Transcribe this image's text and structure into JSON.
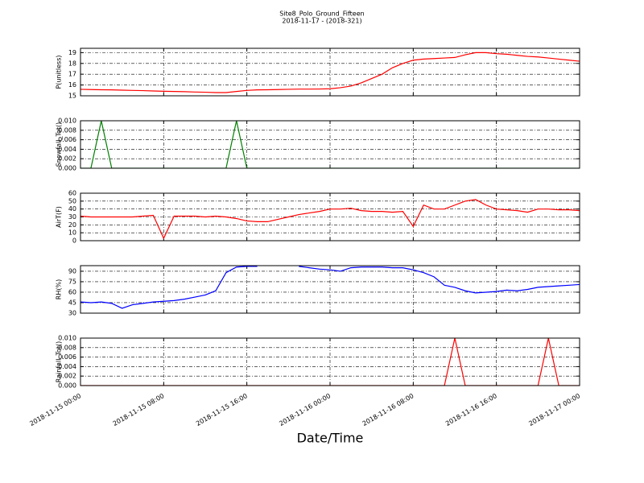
{
  "chart_data": [
    {
      "type": "line",
      "title": "Site8_Polo_Ground_Fifteen",
      "subtitle": "2018-11-17 - (2018-321)",
      "ylabel": "P(unitless)",
      "grid": true,
      "x": [
        "2018-11-15 00:00",
        "2018-11-15 01:00",
        "2018-11-15 02:00",
        "2018-11-15 03:00",
        "2018-11-15 04:00",
        "2018-11-15 05:00",
        "2018-11-15 06:00",
        "2018-11-15 07:00",
        "2018-11-15 08:00",
        "2018-11-15 09:00",
        "2018-11-15 10:00",
        "2018-11-15 11:00",
        "2018-11-15 12:00",
        "2018-11-15 13:00",
        "2018-11-15 14:00",
        "2018-11-15 15:00",
        "2018-11-15 16:00",
        "2018-11-15 17:00",
        "2018-11-15 18:00",
        "2018-11-15 19:00",
        "2018-11-15 20:00",
        "2018-11-15 21:00",
        "2018-11-15 22:00",
        "2018-11-15 23:00",
        "2018-11-16 00:00",
        "2018-11-16 01:00",
        "2018-11-16 02:00",
        "2018-11-16 03:00",
        "2018-11-16 04:00",
        "2018-11-16 05:00",
        "2018-11-16 06:00",
        "2018-11-16 07:00",
        "2018-11-16 08:00",
        "2018-11-16 09:00",
        "2018-11-16 10:00",
        "2018-11-16 11:00",
        "2018-11-16 12:00",
        "2018-11-16 13:00",
        "2018-11-16 14:00",
        "2018-11-16 15:00",
        "2018-11-16 16:00",
        "2018-11-16 17:00",
        "2018-11-16 18:00",
        "2018-11-16 19:00",
        "2018-11-16 20:00",
        "2018-11-16 21:00",
        "2018-11-16 22:00",
        "2018-11-16 23:00",
        "2018-11-17 00:00"
      ],
      "series": [
        {
          "color": "#ff0000",
          "values": [
            15.6,
            15.58,
            15.56,
            15.55,
            15.52,
            15.5,
            15.48,
            15.45,
            15.42,
            15.4,
            15.38,
            15.35,
            15.33,
            15.3,
            15.3,
            15.4,
            15.5,
            15.55,
            15.56,
            15.58,
            15.6,
            15.62,
            15.62,
            15.63,
            15.65,
            15.75,
            15.9,
            16.2,
            16.6,
            17.0,
            17.6,
            18.0,
            18.3,
            18.4,
            18.45,
            18.5,
            18.55,
            18.8,
            19.0,
            19.0,
            18.9,
            18.85,
            18.75,
            18.65,
            18.6,
            18.5,
            18.4,
            18.3,
            18.2
          ]
        }
      ],
      "xlim": [
        "2018-11-15 00:00",
        "2018-11-17 00:00"
      ],
      "xticks": [
        "2018-11-15 00:00",
        "2018-11-15 08:00",
        "2018-11-15 16:00",
        "2018-11-16 00:00",
        "2018-11-16 08:00",
        "2018-11-16 16:00",
        "2018-11-17 00:00"
      ],
      "ylim": [
        15,
        19.4
      ],
      "yticks": [
        15,
        16,
        17,
        18,
        19
      ]
    },
    {
      "type": "line",
      "ylabel": "Snowfall_Tot()",
      "grid": true,
      "x": [
        "2018-11-15 00:00",
        "2018-11-15 01:00",
        "2018-11-15 02:00",
        "2018-11-15 03:00",
        "2018-11-15 04:00",
        "2018-11-15 05:00",
        "2018-11-15 06:00",
        "2018-11-15 07:00",
        "2018-11-15 08:00",
        "2018-11-15 09:00",
        "2018-11-15 10:00",
        "2018-11-15 11:00",
        "2018-11-15 12:00",
        "2018-11-15 13:00",
        "2018-11-15 14:00",
        "2018-11-15 15:00",
        "2018-11-15 16:00",
        "2018-11-15 17:00",
        "2018-11-15 18:00",
        "2018-11-15 19:00",
        "2018-11-15 20:00",
        "2018-11-15 21:00",
        "2018-11-15 22:00",
        "2018-11-15 23:00",
        "2018-11-16 00:00",
        "2018-11-16 01:00",
        "2018-11-16 02:00",
        "2018-11-16 03:00",
        "2018-11-16 04:00",
        "2018-11-16 05:00",
        "2018-11-16 06:00",
        "2018-11-16 07:00",
        "2018-11-16 08:00",
        "2018-11-16 09:00",
        "2018-11-16 10:00",
        "2018-11-16 11:00",
        "2018-11-16 12:00",
        "2018-11-16 13:00",
        "2018-11-16 14:00",
        "2018-11-16 15:00",
        "2018-11-16 16:00",
        "2018-11-16 17:00",
        "2018-11-16 18:00",
        "2018-11-16 19:00",
        "2018-11-16 20:00",
        "2018-11-16 21:00",
        "2018-11-16 22:00",
        "2018-11-16 23:00",
        "2018-11-17 00:00"
      ],
      "series": [
        {
          "color": "#008000",
          "values": [
            0,
            0,
            0.01,
            0,
            0,
            0,
            0,
            0,
            0,
            0,
            0,
            0,
            0,
            0,
            0,
            0.01,
            0,
            0,
            0,
            0,
            0,
            0,
            0,
            0,
            0,
            0,
            0,
            0,
            0,
            0,
            0,
            0,
            0,
            0,
            0,
            0,
            0,
            0,
            0,
            0,
            0,
            0,
            0,
            0,
            0,
            0,
            0,
            0,
            0
          ]
        }
      ],
      "xlim": [
        "2018-11-15 00:00",
        "2018-11-17 00:00"
      ],
      "xticks": [
        "2018-11-15 00:00",
        "2018-11-15 08:00",
        "2018-11-15 16:00",
        "2018-11-16 00:00",
        "2018-11-16 08:00",
        "2018-11-16 16:00",
        "2018-11-17 00:00"
      ],
      "ylim": [
        0,
        0.01
      ],
      "yticks": [
        {
          "value": 0,
          "label": "0.000"
        },
        {
          "value": 0.002,
          "label": "0.002"
        },
        {
          "value": 0.004,
          "label": "0.004"
        },
        {
          "value": 0.006,
          "label": "0.006"
        },
        {
          "value": 0.008,
          "label": "0.008"
        },
        {
          "value": 0.01,
          "label": "0.010"
        }
      ]
    },
    {
      "type": "line",
      "ylabel": "AirT(F)",
      "grid": true,
      "x": [
        "2018-11-15 00:00",
        "2018-11-15 01:00",
        "2018-11-15 02:00",
        "2018-11-15 03:00",
        "2018-11-15 04:00",
        "2018-11-15 05:00",
        "2018-11-15 06:00",
        "2018-11-15 07:00",
        "2018-11-15 08:00",
        "2018-11-15 09:00",
        "2018-11-15 10:00",
        "2018-11-15 11:00",
        "2018-11-15 12:00",
        "2018-11-15 13:00",
        "2018-11-15 14:00",
        "2018-11-15 15:00",
        "2018-11-15 16:00",
        "2018-11-15 17:00",
        "2018-11-15 18:00",
        "2018-11-15 19:00",
        "2018-11-15 20:00",
        "2018-11-15 21:00",
        "2018-11-15 22:00",
        "2018-11-15 23:00",
        "2018-11-16 00:00",
        "2018-11-16 01:00",
        "2018-11-16 02:00",
        "2018-11-16 03:00",
        "2018-11-16 04:00",
        "2018-11-16 05:00",
        "2018-11-16 06:00",
        "2018-11-16 07:00",
        "2018-11-16 08:00",
        "2018-11-16 09:00",
        "2018-11-16 10:00",
        "2018-11-16 11:00",
        "2018-11-16 12:00",
        "2018-11-16 13:00",
        "2018-11-16 14:00",
        "2018-11-16 15:00",
        "2018-11-16 16:00",
        "2018-11-16 17:00",
        "2018-11-16 18:00",
        "2018-11-16 19:00",
        "2018-11-16 20:00",
        "2018-11-16 21:00",
        "2018-11-16 22:00",
        "2018-11-16 23:00",
        "2018-11-17 00:00"
      ],
      "series": [
        {
          "color": "#ff0000",
          "values": [
            31,
            30,
            30,
            30,
            30,
            30,
            31,
            32,
            3,
            31,
            31,
            31,
            30,
            31,
            30,
            28,
            25,
            24,
            24,
            27,
            30,
            33,
            35,
            37,
            40,
            40,
            41,
            38,
            37,
            37,
            36,
            37,
            18,
            45,
            40,
            40,
            45,
            50,
            52,
            45,
            40,
            39,
            38,
            36,
            40,
            40,
            39,
            39,
            38
          ]
        }
      ],
      "xlim": [
        "2018-11-15 00:00",
        "2018-11-17 00:00"
      ],
      "xticks": [
        "2018-11-15 00:00",
        "2018-11-15 08:00",
        "2018-11-15 16:00",
        "2018-11-16 00:00",
        "2018-11-16 08:00",
        "2018-11-16 16:00",
        "2018-11-17 00:00"
      ],
      "ylim": [
        0,
        60
      ],
      "yticks": [
        0,
        10,
        20,
        30,
        40,
        50,
        60
      ]
    },
    {
      "type": "line",
      "ylabel": "RH(%)",
      "grid": true,
      "x": [
        "2018-11-15 00:00",
        "2018-11-15 01:00",
        "2018-11-15 02:00",
        "2018-11-15 03:00",
        "2018-11-15 04:00",
        "2018-11-15 05:00",
        "2018-11-15 06:00",
        "2018-11-15 07:00",
        "2018-11-15 08:00",
        "2018-11-15 09:00",
        "2018-11-15 10:00",
        "2018-11-15 11:00",
        "2018-11-15 12:00",
        "2018-11-15 13:00",
        "2018-11-15 14:00",
        "2018-11-15 15:00",
        "2018-11-15 16:00",
        "2018-11-15 17:00",
        "2018-11-15 18:00",
        "2018-11-15 19:00",
        "2018-11-15 20:00",
        "2018-11-15 21:00",
        "2018-11-15 22:00",
        "2018-11-15 23:00",
        "2018-11-16 00:00",
        "2018-11-16 01:00",
        "2018-11-16 02:00",
        "2018-11-16 03:00",
        "2018-11-16 04:00",
        "2018-11-16 05:00",
        "2018-11-16 06:00",
        "2018-11-16 07:00",
        "2018-11-16 08:00",
        "2018-11-16 09:00",
        "2018-11-16 10:00",
        "2018-11-16 11:00",
        "2018-11-16 12:00",
        "2018-11-16 13:00",
        "2018-11-16 14:00",
        "2018-11-16 15:00",
        "2018-11-16 16:00",
        "2018-11-16 17:00",
        "2018-11-16 18:00",
        "2018-11-16 19:00",
        "2018-11-16 20:00",
        "2018-11-16 21:00",
        "2018-11-16 22:00",
        "2018-11-16 23:00",
        "2018-11-17 00:00"
      ],
      "series": [
        {
          "color": "#0000ff",
          "values": [
            46,
            45,
            46,
            44,
            37,
            42,
            44,
            46,
            47,
            48,
            50,
            53,
            56,
            62,
            88,
            96,
            97,
            97,
            null,
            null,
            null,
            97,
            95,
            93,
            92,
            90,
            95,
            96,
            96,
            96,
            95,
            95,
            92,
            88,
            82,
            70,
            67,
            62,
            59,
            60,
            61,
            63,
            62,
            64,
            67,
            68,
            69,
            70,
            71
          ]
        }
      ],
      "xlim": [
        "2018-11-15 00:00",
        "2018-11-17 00:00"
      ],
      "xticks": [
        "2018-11-15 00:00",
        "2018-11-15 08:00",
        "2018-11-15 16:00",
        "2018-11-16 00:00",
        "2018-11-16 08:00",
        "2018-11-16 16:00",
        "2018-11-17 00:00"
      ],
      "ylim": [
        30,
        98
      ],
      "yticks": [
        30,
        45,
        60,
        75,
        90
      ]
    },
    {
      "type": "line",
      "ylabel": "Rainfall_Tot()",
      "xlabel": "Date/Time",
      "grid": true,
      "x": [
        "2018-11-15 00:00",
        "2018-11-15 01:00",
        "2018-11-15 02:00",
        "2018-11-15 03:00",
        "2018-11-15 04:00",
        "2018-11-15 05:00",
        "2018-11-15 06:00",
        "2018-11-15 07:00",
        "2018-11-15 08:00",
        "2018-11-15 09:00",
        "2018-11-15 10:00",
        "2018-11-15 11:00",
        "2018-11-15 12:00",
        "2018-11-15 13:00",
        "2018-11-15 14:00",
        "2018-11-15 15:00",
        "2018-11-15 16:00",
        "2018-11-15 17:00",
        "2018-11-15 18:00",
        "2018-11-15 19:00",
        "2018-11-15 20:00",
        "2018-11-15 21:00",
        "2018-11-15 22:00",
        "2018-11-15 23:00",
        "2018-11-16 00:00",
        "2018-11-16 01:00",
        "2018-11-16 02:00",
        "2018-11-16 03:00",
        "2018-11-16 04:00",
        "2018-11-16 05:00",
        "2018-11-16 06:00",
        "2018-11-16 07:00",
        "2018-11-16 08:00",
        "2018-11-16 09:00",
        "2018-11-16 10:00",
        "2018-11-16 11:00",
        "2018-11-16 12:00",
        "2018-11-16 13:00",
        "2018-11-16 14:00",
        "2018-11-16 15:00",
        "2018-11-16 16:00",
        "2018-11-16 17:00",
        "2018-11-16 18:00",
        "2018-11-16 19:00",
        "2018-11-16 20:00",
        "2018-11-16 21:00",
        "2018-11-16 22:00",
        "2018-11-16 23:00",
        "2018-11-17 00:00"
      ],
      "series": [
        {
          "color": "#ff0000",
          "values": [
            0,
            0,
            0,
            0,
            0,
            0,
            0,
            0,
            0,
            0,
            0,
            0,
            0,
            0,
            0,
            0,
            0,
            0,
            0,
            0,
            0,
            0,
            0,
            0,
            0,
            0,
            0,
            0,
            0,
            0,
            0,
            0,
            0,
            0,
            0,
            0,
            0.01,
            0,
            0,
            0,
            0,
            0,
            0,
            0,
            0,
            0.01,
            0,
            0,
            0
          ]
        }
      ],
      "xlim": [
        "2018-11-15 00:00",
        "2018-11-17 00:00"
      ],
      "xticks": [
        "2018-11-15 00:00",
        "2018-11-15 08:00",
        "2018-11-15 16:00",
        "2018-11-16 00:00",
        "2018-11-16 08:00",
        "2018-11-16 16:00",
        "2018-11-17 00:00"
      ],
      "ylim": [
        0,
        0.01
      ],
      "yticks": [
        {
          "value": 0,
          "label": "0.000"
        },
        {
          "value": 0.002,
          "label": "0.002"
        },
        {
          "value": 0.004,
          "label": "0.004"
        },
        {
          "value": 0.006,
          "label": "0.006"
        },
        {
          "value": 0.008,
          "label": "0.008"
        },
        {
          "value": 0.01,
          "label": "0.010"
        }
      ]
    }
  ]
}
